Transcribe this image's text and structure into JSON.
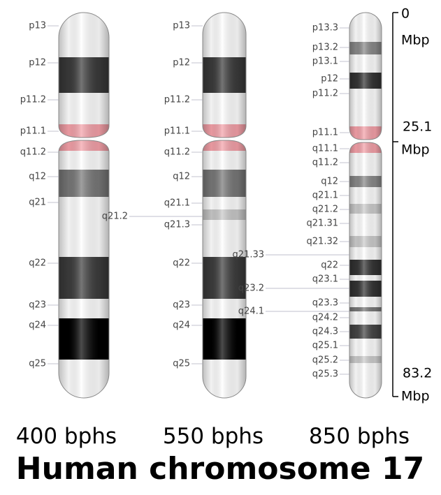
{
  "title": "Human chromosome 17",
  "chromosomes": [
    {
      "caption": "400 bphs",
      "bands": [
        "p13",
        "p12",
        "p11.2",
        "p11.1",
        "q11.2",
        "q12",
        "q21",
        "q22",
        "q23",
        "q24",
        "q25"
      ]
    },
    {
      "caption": "550 bphs",
      "bands": [
        "p13",
        "p12",
        "p11.2",
        "p11.1",
        "q11.2",
        "q12",
        "q21.1",
        "q21.2",
        "q21.3",
        "q22",
        "q23",
        "q24",
        "q25"
      ]
    },
    {
      "caption": "850 bphs",
      "bands": [
        "p13.3",
        "p13.2",
        "p13.1",
        "p12",
        "p11.2",
        "p11.1",
        "q11.1",
        "q11.2",
        "q12",
        "q21.1",
        "q21.2",
        "q21.31",
        "q21.32",
        "q21.33",
        "q22",
        "q23.1",
        "q23.2",
        "q23.3",
        "q24.1",
        "q24.2",
        "q24.3",
        "q25.1",
        "q25.2",
        "q25.3"
      ]
    }
  ],
  "scale": [
    {
      "value": "0",
      "unit": "Mbp"
    },
    {
      "value": "25.1",
      "unit": "Mbp"
    },
    {
      "value": "83.2",
      "unit": "Mbp"
    }
  ]
}
